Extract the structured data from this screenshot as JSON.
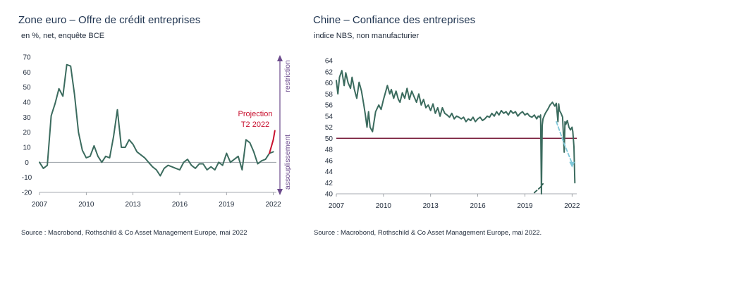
{
  "chart_data": [
    {
      "type": "line",
      "title": "Zone euro – Offre de crédit entreprises",
      "subtitle": "en %, net, enquête BCE",
      "source": "Source : Macrobond, Rothschild & Co Asset Management Europe, mai 2022",
      "xlabel": "",
      "ylabel": "",
      "xlim": [
        2007,
        2022.2
      ],
      "ylim": [
        -20,
        70
      ],
      "x_ticks": [
        "2007",
        "2010",
        "2013",
        "2016",
        "2019",
        "2022"
      ],
      "y_ticks": [
        "70",
        "60",
        "50",
        "40",
        "30",
        "20",
        "10",
        "0",
        "-10",
        "-20"
      ],
      "zero_line": 0,
      "series": [
        {
          "name": "Offre de crédit",
          "color": "#3b6b5e",
          "x": [
            2007.0,
            2007.25,
            2007.5,
            2007.75,
            2008.0,
            2008.25,
            2008.5,
            2008.75,
            2009.0,
            2009.25,
            2009.5,
            2009.75,
            2010.0,
            2010.25,
            2010.5,
            2010.75,
            2011.0,
            2011.25,
            2011.5,
            2011.75,
            2012.0,
            2012.25,
            2012.5,
            2012.75,
            2013.0,
            2013.25,
            2013.5,
            2013.75,
            2014.0,
            2014.25,
            2014.5,
            2014.75,
            2015.0,
            2015.25,
            2015.5,
            2015.75,
            2016.0,
            2016.25,
            2016.5,
            2016.75,
            2017.0,
            2017.25,
            2017.5,
            2017.75,
            2018.0,
            2018.25,
            2018.5,
            2018.75,
            2019.0,
            2019.25,
            2019.5,
            2019.75,
            2020.0,
            2020.25,
            2020.5,
            2020.75,
            2021.0,
            2021.25,
            2021.5,
            2021.75,
            2022.0
          ],
          "values": [
            0,
            -4,
            -2,
            31,
            39,
            49,
            44,
            65,
            64,
            45,
            20,
            8,
            3,
            4,
            11,
            4,
            0,
            4,
            3,
            17,
            35,
            10,
            10,
            15,
            12,
            7,
            5,
            3,
            0,
            -3,
            -5,
            -9,
            -4,
            -2,
            -3,
            -4,
            -5,
            0,
            2,
            -2,
            -4,
            -1,
            -1,
            -5,
            -3,
            -5,
            0,
            -2,
            6,
            0,
            2,
            4,
            -5,
            15,
            13,
            7,
            -1,
            1,
            2,
            6,
            7
          ]
        },
        {
          "name": "Projection T2 2022",
          "color": "#c8102e",
          "x": [
            2021.75,
            2022.0,
            2022.1
          ],
          "values": [
            6,
            15,
            21
          ]
        }
      ],
      "annotations": {
        "projection_label_line1": "Projection",
        "projection_label_line2": "T2 2022",
        "restriction_label": "restriction",
        "assouplissement_label": "assouplissement",
        "arrow_color": "#6b4a8c"
      }
    },
    {
      "type": "line",
      "title": "Chine – Confiance des entreprises",
      "subtitle": "indice NBS, non manufacturier",
      "source": "Source : Macrobond, Rothschild & Co Asset Management Europe, mai 2022.",
      "xlabel": "",
      "ylabel": "",
      "xlim": [
        2007,
        2022.3
      ],
      "ylim": [
        40,
        64
      ],
      "x_ticks": [
        "2007",
        "2010",
        "2013",
        "2016",
        "2019",
        "2022"
      ],
      "y_ticks": [
        "64",
        "62",
        "60",
        "58",
        "56",
        "54",
        "52",
        "50",
        "48",
        "46",
        "44",
        "42",
        "40"
      ],
      "reference_line": 50,
      "reference_color": "#7a1f3d",
      "series": [
        {
          "name": "Indice NBS non manufacturier",
          "color": "#3b6b5e",
          "x": [
            2007.0,
            2007.1,
            2007.2,
            2007.35,
            2007.5,
            2007.6,
            2007.75,
            2007.9,
            2008.0,
            2008.15,
            2008.3,
            2008.45,
            2008.6,
            2008.75,
            2008.85,
            2008.95,
            2009.05,
            2009.15,
            2009.3,
            2009.5,
            2009.7,
            2009.85,
            2010.0,
            2010.1,
            2010.25,
            2010.4,
            2010.5,
            2010.65,
            2010.8,
            2010.95,
            2011.05,
            2011.2,
            2011.35,
            2011.5,
            2011.65,
            2011.8,
            2011.95,
            2012.1,
            2012.25,
            2012.4,
            2012.55,
            2012.7,
            2012.85,
            2013.0,
            2013.15,
            2013.3,
            2013.45,
            2013.6,
            2013.75,
            2013.9,
            2014.05,
            2014.2,
            2014.35,
            2014.5,
            2014.65,
            2014.8,
            2014.95,
            2015.1,
            2015.25,
            2015.4,
            2015.55,
            2015.7,
            2015.85,
            2016.0,
            2016.15,
            2016.3,
            2016.45,
            2016.6,
            2016.75,
            2016.9,
            2017.05,
            2017.2,
            2017.35,
            2017.5,
            2017.65,
            2017.8,
            2017.95,
            2018.1,
            2018.25,
            2018.4,
            2018.55,
            2018.7,
            2018.85,
            2019.0,
            2019.15,
            2019.3,
            2019.45,
            2019.6,
            2019.75,
            2019.85,
            2019.95,
            2020.0,
            2020.05,
            2020.1,
            2020.15,
            2020.3,
            2020.45,
            2020.6,
            2020.75,
            2020.9,
            2021.0,
            2021.1,
            2021.15,
            2021.2,
            2021.3,
            2021.4,
            2021.5,
            2021.55,
            2021.6,
            2021.7,
            2021.8,
            2021.9,
            2022.0,
            2022.05,
            2022.12,
            2022.18
          ],
          "values": [
            60.4,
            58.0,
            61.0,
            62.2,
            59.5,
            61.8,
            60.0,
            59.0,
            61.0,
            58.8,
            57.2,
            60.1,
            58.5,
            56.0,
            54.2,
            52.0,
            54.8,
            52.0,
            51.2,
            54.8,
            56.0,
            55.2,
            57.0,
            58.0,
            59.5,
            58.0,
            58.8,
            57.2,
            58.5,
            57.0,
            56.5,
            58.2,
            57.2,
            59.0,
            57.0,
            58.5,
            57.5,
            56.5,
            58.0,
            56.0,
            57.0,
            55.5,
            56.0,
            55.0,
            56.2,
            54.5,
            55.5,
            54.0,
            55.5,
            54.5,
            54.2,
            53.8,
            54.5,
            53.5,
            54.0,
            53.8,
            53.5,
            53.8,
            53.0,
            53.5,
            53.2,
            53.8,
            53.0,
            53.5,
            53.8,
            53.2,
            53.5,
            54.0,
            53.8,
            54.5,
            54.0,
            54.8,
            54.2,
            55.0,
            54.5,
            54.8,
            54.2,
            55.0,
            54.5,
            54.8,
            54.0,
            54.5,
            54.8,
            54.2,
            54.5,
            54.0,
            53.8,
            54.2,
            53.5,
            54.0,
            53.8,
            54.2,
            40.0,
            52.3,
            53.5,
            54.5,
            55.2,
            56.0,
            56.5,
            55.8,
            56.3,
            53.0,
            56.2,
            55.0,
            54.5,
            53.8,
            47.5,
            53.0,
            52.5,
            53.2,
            52.0,
            51.5,
            52.0,
            51.2,
            48.5,
            42.0
          ],
          "extra_marks": [
            {
              "name": "trend-arrow-2020",
              "color": "#2f5f52",
              "x": [
                2019.6,
                2020.0,
                2020.15
              ],
              "values": [
                40.2,
                41.2,
                41.8
              ]
            },
            {
              "name": "trend-arrow-2021",
              "color": "#7fc8d9",
              "x": [
                2021.0,
                2021.5,
                2022.0
              ],
              "values": [
                53.0,
                49.0,
                45.5
              ]
            }
          ]
        }
      ]
    }
  ]
}
